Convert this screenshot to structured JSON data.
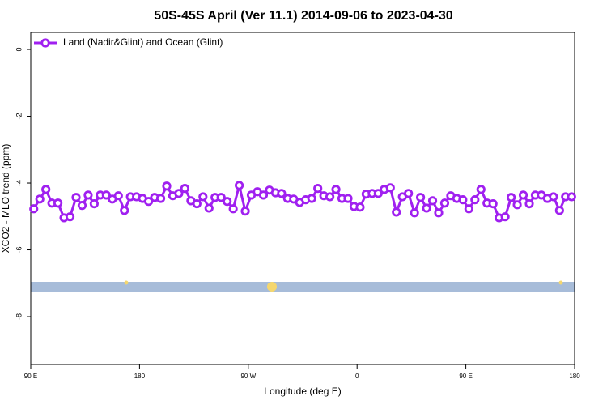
{
  "chart_data": {
    "type": "line",
    "title": "50S-45S April (Ver 11.1)   2014-09-06 to 2023-04-30",
    "x_label": "Longitude (deg E)",
    "y_label": "XCO2 - MLO trend (ppm)",
    "x": [
      92.5,
      97.5,
      102.5,
      107.5,
      112.5,
      117.5,
      122.5,
      127.5,
      132.5,
      137.5,
      142.5,
      147.5,
      152.5,
      157.5,
      162.5,
      167.5,
      172.5,
      177.5,
      182.5,
      187.5,
      192.5,
      197.5,
      202.5,
      207.5,
      212.5,
      217.5,
      222.5,
      227.5,
      232.5,
      237.5,
      242.5,
      247.5,
      252.5,
      257.5,
      262.5,
      267.5,
      272.5,
      277.5,
      282.5,
      287.5,
      292.5,
      297.5,
      302.5,
      307.5,
      312.5,
      317.5,
      322.5,
      327.5,
      332.5,
      337.5,
      342.5,
      347.5,
      352.5,
      357.5,
      362.5,
      367.5,
      372.5,
      377.5,
      382.5,
      387.5,
      392.5,
      397.5,
      402.5,
      407.5,
      412.5,
      417.5,
      422.5,
      427.5,
      432.5,
      437.5,
      442.5,
      447.5,
      452.5,
      457.5,
      462.5,
      467.5,
      472.5,
      477.5,
      482.5,
      487.5,
      492.5,
      497.5,
      502.5,
      507.5,
      512.5,
      517.5,
      522.5,
      527.5,
      532.5,
      537.5
    ],
    "series": [
      {
        "name": "Land (Nadir&Glint) and Ocean (Glint)",
        "color": "#a020f0",
        "values": [
          -4.77,
          -4.48,
          -4.19,
          -4.6,
          -4.6,
          -5.04,
          -5.01,
          -4.43,
          -4.67,
          -4.36,
          -4.62,
          -4.36,
          -4.36,
          -4.48,
          -4.38,
          -4.82,
          -4.41,
          -4.41,
          -4.46,
          -4.55,
          -4.43,
          -4.46,
          -4.09,
          -4.38,
          -4.31,
          -4.16,
          -4.53,
          -4.62,
          -4.41,
          -4.75,
          -4.43,
          -4.43,
          -4.55,
          -4.77,
          -4.07,
          -4.84,
          -4.36,
          -4.26,
          -4.36,
          -4.21,
          -4.29,
          -4.31,
          -4.46,
          -4.48,
          -4.58,
          -4.5,
          -4.46,
          -4.16,
          -4.38,
          -4.41,
          -4.19,
          -4.46,
          -4.46,
          -4.7,
          -4.72,
          -4.33,
          -4.31,
          -4.31,
          -4.19,
          -4.14,
          -4.87,
          -4.41,
          -4.31,
          -4.89,
          -4.43,
          -4.75,
          -4.53,
          -4.89,
          -4.6,
          -4.38,
          -4.46,
          -4.5,
          -4.77,
          -4.5,
          -4.19,
          -4.6,
          -4.62,
          -5.04,
          -5.01,
          -4.43,
          -4.65,
          -4.36,
          -4.62,
          -4.36,
          -4.36,
          -4.46,
          -4.41,
          -4.82,
          -4.41,
          -4.41
        ]
      }
    ],
    "xlim": [
      90,
      540
    ],
    "xticks": [
      {
        "value": 90,
        "label": "90 E"
      },
      {
        "value": 180,
        "label": "180"
      },
      {
        "value": 270,
        "label": "90 W"
      },
      {
        "value": 360,
        "label": "0"
      },
      {
        "value": 450,
        "label": "90 E"
      },
      {
        "value": 540,
        "label": "180"
      }
    ],
    "ylim": [
      -9.43,
      0.51
    ],
    "yticks": [
      0,
      -2,
      -4,
      -6,
      -8
    ],
    "legend": "top-left"
  }
}
